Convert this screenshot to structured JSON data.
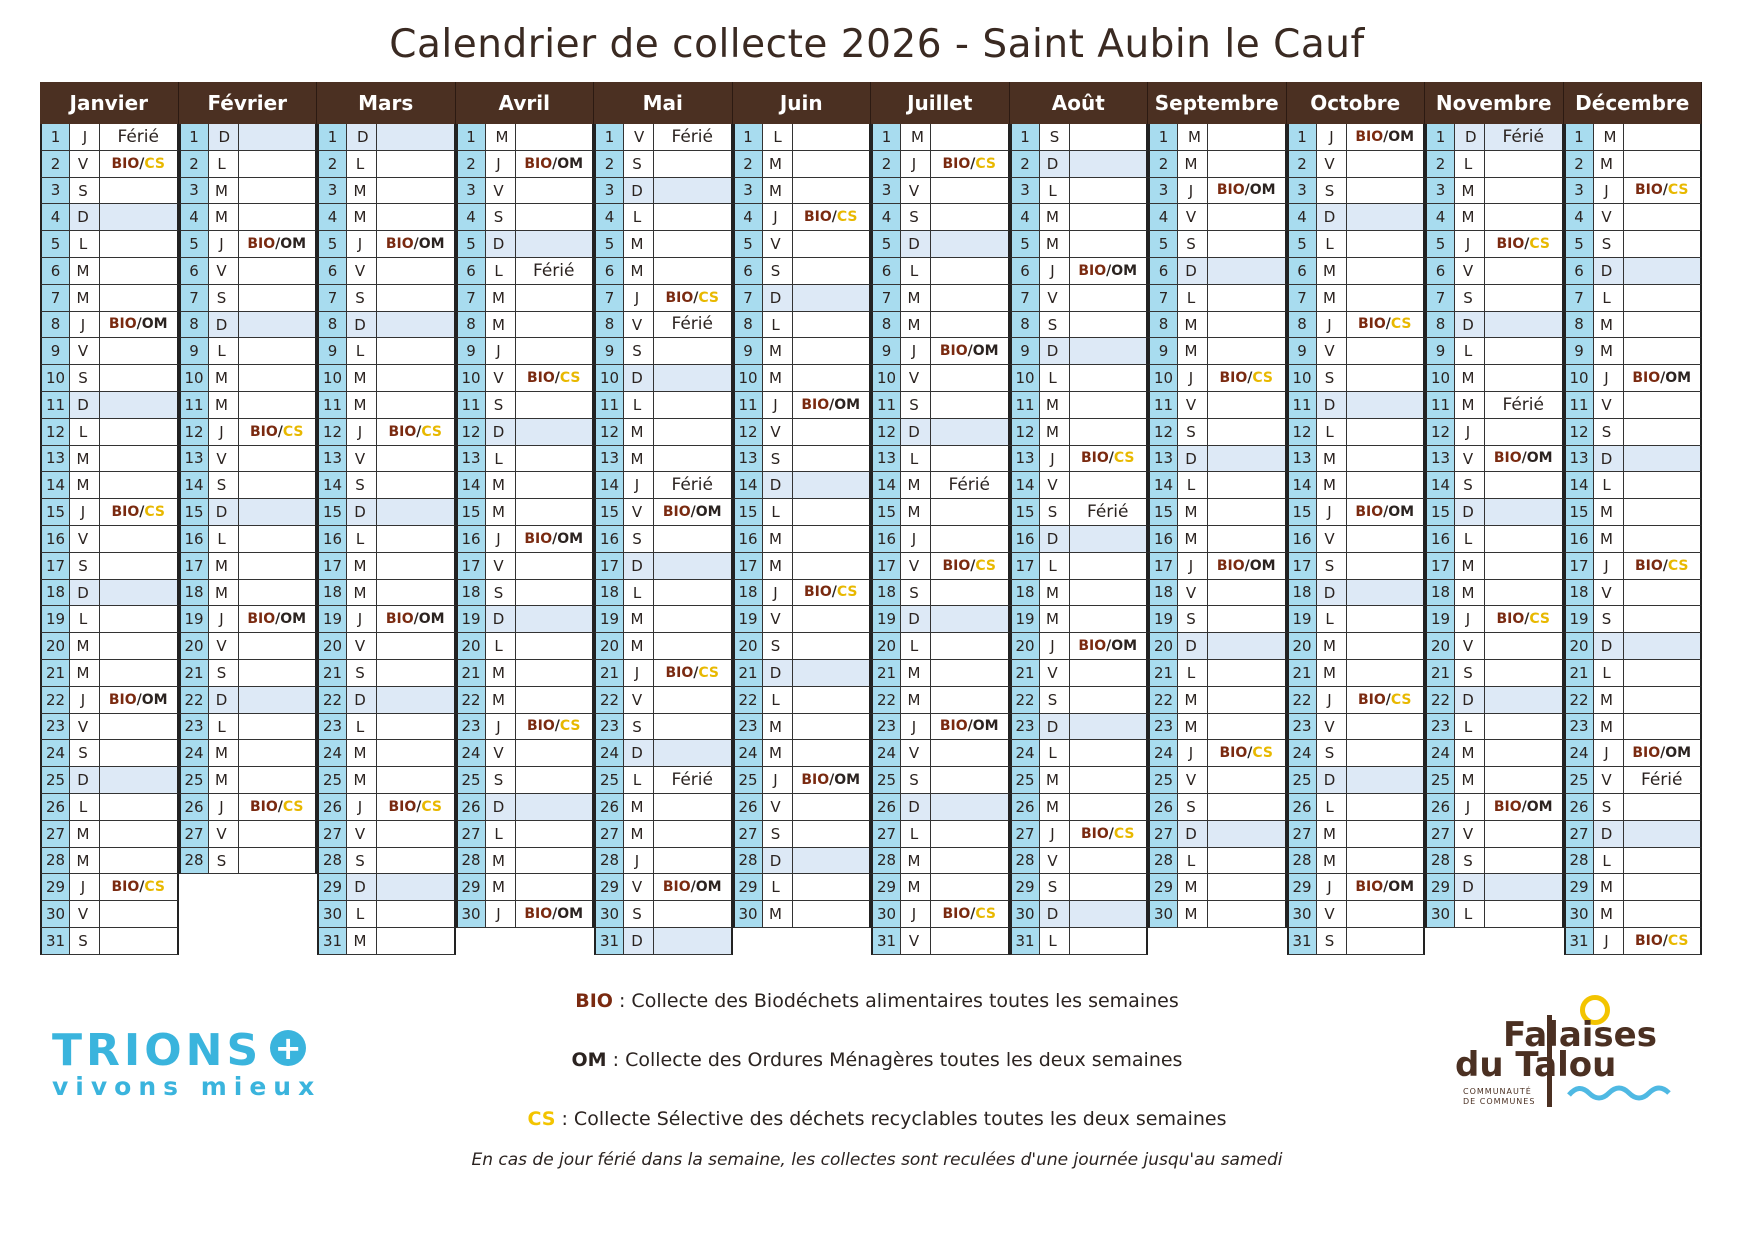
{
  "title": "Calendrier de collecte 2026 - Saint Aubin le Cauf",
  "colors": {
    "header": "#4b3022",
    "bio": "#7a2a10",
    "cs": "#f3c400",
    "day_cell": "#a8dcef",
    "sunday": "#dde9f6"
  },
  "months": [
    {
      "name": "Janvier",
      "weekdays": "JVSDLMMJVSDLMMJVSDLMMJVSDLMMJVS",
      "events": {
        "1": "Férié",
        "2": "BIO/CS",
        "8": "BIO/OM",
        "15": "BIO/CS",
        "22": "BIO/OM",
        "29": "BIO/CS"
      }
    },
    {
      "name": "Février",
      "weekdays": "DLMMJVSDLMMJVSDLMMJVSDLMMJVS",
      "events": {
        "5": "BIO/OM",
        "12": "BIO/CS",
        "19": "BIO/OM",
        "26": "BIO/CS"
      }
    },
    {
      "name": "Mars",
      "weekdays": "DLMMJVSDLMMJVSDLMMJVSDLMMJVSDLM",
      "events": {
        "5": "BIO/OM",
        "12": "BIO/CS",
        "19": "BIO/OM",
        "26": "BIO/CS"
      }
    },
    {
      "name": "Avril",
      "weekdays": "MJVSDLMMJVSDLMMJVSDLMMJVSDLMMJ",
      "events": {
        "2": "BIO/OM",
        "6": "Férié",
        "10": "BIO/CS",
        "16": "BIO/OM",
        "23": "BIO/CS",
        "30": "BIO/OM"
      }
    },
    {
      "name": "Mai",
      "weekdays": "VSDLMMJVSDLMMJVSDLMMJVSDLMMJVSD",
      "events": {
        "1": "Férié",
        "7": "BIO/CS",
        "8": "Férié",
        "14": "Férié",
        "15": "BIO/OM",
        "21": "BIO/CS",
        "25": "Férié",
        "29": "BIO/OM"
      }
    },
    {
      "name": "Juin",
      "weekdays": "LMMJVSDLMMJVSDLMMJVSDLMMJVSDLM",
      "events": {
        "4": "BIO/CS",
        "11": "BIO/OM",
        "18": "BIO/CS",
        "25": "BIO/OM"
      }
    },
    {
      "name": "Juillet",
      "weekdays": "MJVSDLMMJVSDLMMJVSDLMMJVSDLMMJV",
      "events": {
        "2": "BIO/CS",
        "9": "BIO/OM",
        "14": "Férié",
        "17": "BIO/CS",
        "23": "BIO/OM",
        "30": "BIO/CS"
      }
    },
    {
      "name": "Août",
      "weekdays": "SDLMMJVSDLMMJVSDLMMJVSDLMMJVSDL",
      "events": {
        "6": "BIO/OM",
        "13": "BIO/CS",
        "15": "Férié",
        "20": "BIO/OM",
        "27": "BIO/CS"
      }
    },
    {
      "name": "Septembre",
      "weekdays": "MMJVSDLMMJVSDLMMJVSDLMMJVSDLMM",
      "events": {
        "3": "BIO/OM",
        "10": "BIO/CS",
        "17": "BIO/OM",
        "24": "BIO/CS"
      }
    },
    {
      "name": "Octobre",
      "weekdays": "JVSDLMMJVSDLMMJVSDLMMJVSDLMMJVS",
      "events": {
        "1": "BIO/OM",
        "8": "BIO/CS",
        "15": "BIO/OM",
        "22": "BIO/CS",
        "29": "BIO/OM"
      }
    },
    {
      "name": "Novembre",
      "weekdays": "DLMMJVSDLMMJVSDLMMJVSDLMMJVSDL",
      "events": {
        "1": "Férié",
        "5": "BIO/CS",
        "11": "Férié",
        "13": "BIO/OM",
        "19": "BIO/CS",
        "26": "BIO/OM"
      }
    },
    {
      "name": "Décembre",
      "weekdays": "MMJVSDLMMJVSDLMMJVSDLMMJVSDLMMJ",
      "events": {
        "3": "BIO/CS",
        "10": "BIO/OM",
        "17": "BIO/CS",
        "24": "BIO/OM",
        "25": "Férié",
        "31": "BIO/CS"
      }
    }
  ],
  "legend": {
    "bio": {
      "code": "BIO",
      "text": " : Collecte des Biodéchets alimentaires toutes les semaines"
    },
    "om": {
      "code": "OM",
      "text": " : Collecte des Ordures Ménagères toutes les deux semaines"
    },
    "cs": {
      "code": "CS",
      "text": " : Collecte Sélective des déchets recyclables toutes les deux semaines"
    },
    "note": "En cas de jour férié dans la semaine, les collectes sont reculées d'une journée jusqu'au samedi"
  },
  "logos": {
    "trions": {
      "line1": "TRIONS",
      "plus": "+",
      "line2": "vivons mieux"
    },
    "falaises": {
      "line1": "Falaises",
      "line2": "du Talou",
      "sub1": "COMMUNAUTÉ",
      "sub2": "DE COMMUNES"
    }
  }
}
